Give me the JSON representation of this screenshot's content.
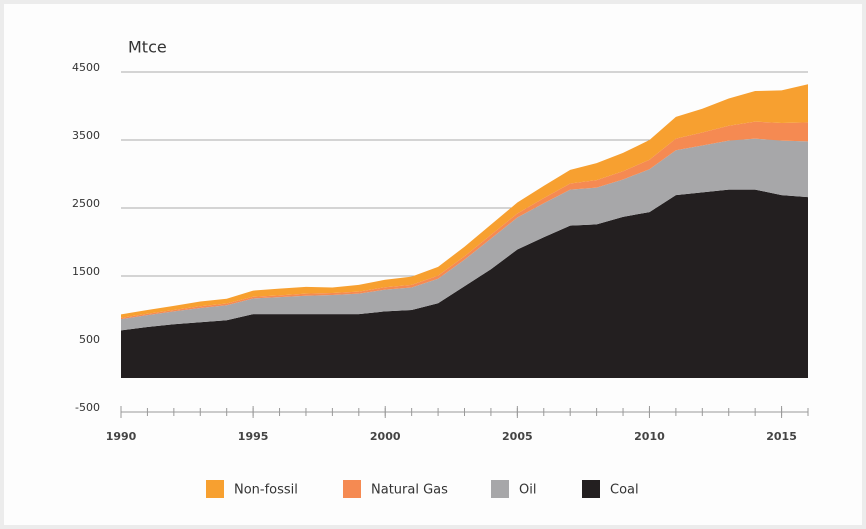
{
  "chart_data": {
    "type": "stacked-area",
    "ylabel": "Mtce",
    "x": [
      1990,
      1991,
      1992,
      1993,
      1994,
      1995,
      1996,
      1997,
      1998,
      1999,
      2000,
      2001,
      2002,
      2003,
      2004,
      2005,
      2006,
      2007,
      2008,
      2009,
      2010,
      2011,
      2012,
      2013,
      2014,
      2015,
      2016
    ],
    "xlim": [
      1990,
      2016
    ],
    "xticks": [
      1990,
      1995,
      2000,
      2005,
      2010,
      2015
    ],
    "ylim": [
      -500,
      4500
    ],
    "yticks": [
      -500,
      500,
      1500,
      2500,
      3500,
      4500
    ],
    "grid": true,
    "legend": "bottom",
    "series": [
      {
        "name": "Non-fossil",
        "color": "#f7a030",
        "values": [
          50,
          55,
          60,
          70,
          70,
          90,
          100,
          100,
          80,
          100,
          110,
          120,
          130,
          140,
          150,
          160,
          180,
          200,
          250,
          270,
          290,
          320,
          350,
          400,
          450,
          480,
          560
        ]
      },
      {
        "name": "Natural Gas",
        "color": "#f58a52",
        "values": [
          20,
          20,
          20,
          25,
          25,
          25,
          25,
          30,
          30,
          30,
          35,
          40,
          45,
          50,
          55,
          60,
          75,
          90,
          110,
          120,
          140,
          170,
          190,
          220,
          250,
          260,
          280
        ]
      },
      {
        "name": "Oil",
        "color": "#a7a7a9",
        "values": [
          165,
          175,
          190,
          210,
          220,
          230,
          250,
          270,
          280,
          300,
          320,
          330,
          360,
          390,
          450,
          470,
          500,
          530,
          540,
          550,
          630,
          660,
          690,
          720,
          750,
          800,
          820
        ]
      },
      {
        "name": "Coal",
        "color": "#231f20",
        "values": [
          700,
          750,
          790,
          820,
          850,
          940,
          940,
          940,
          940,
          940,
          980,
          1000,
          1100,
          1350,
          1600,
          1890,
          2070,
          2240,
          2260,
          2370,
          2440,
          2690,
          2730,
          2770,
          2770,
          2690,
          2660
        ]
      }
    ]
  }
}
